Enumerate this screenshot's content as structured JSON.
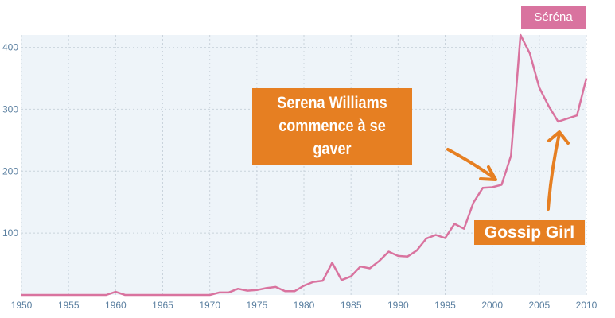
{
  "chart_data": {
    "type": "line",
    "title": "",
    "xlabel": "",
    "ylabel": "",
    "xlim": [
      1950,
      2010
    ],
    "ylim": [
      0,
      420
    ],
    "x_ticks": [
      "1950",
      "1955",
      "1960",
      "1965",
      "1970",
      "1975",
      "1980",
      "1985",
      "1990",
      "1995",
      "2000",
      "2005",
      "2010"
    ],
    "y_ticks": [
      "100",
      "200",
      "300",
      "400"
    ],
    "grid": true,
    "legend": "top-right",
    "series": [
      {
        "name": "Séréna",
        "color": "#d9739f",
        "x": [
          1950,
          1951,
          1952,
          1953,
          1954,
          1955,
          1956,
          1957,
          1958,
          1959,
          1960,
          1961,
          1962,
          1963,
          1964,
          1965,
          1966,
          1967,
          1968,
          1969,
          1970,
          1971,
          1972,
          1973,
          1974,
          1975,
          1976,
          1977,
          1978,
          1979,
          1980,
          1981,
          1982,
          1983,
          1984,
          1985,
          1986,
          1987,
          1988,
          1989,
          1990,
          1991,
          1992,
          1993,
          1994,
          1995,
          1996,
          1997,
          1998,
          1999,
          2000,
          2001,
          2002,
          2003,
          2004,
          2005,
          2006,
          2007,
          2008,
          2009,
          2010
        ],
        "y": [
          0,
          0,
          0,
          0,
          0,
          0,
          0,
          0,
          0,
          0,
          5,
          0,
          0,
          0,
          0,
          0,
          0,
          0,
          0,
          0,
          0,
          4,
          4,
          10,
          7,
          8,
          11,
          13,
          6,
          6,
          15,
          21,
          23,
          52,
          24,
          30,
          46,
          43,
          55,
          70,
          63,
          62,
          72,
          91,
          97,
          92,
          115,
          107,
          149,
          173,
          174,
          178,
          225,
          420,
          390,
          335,
          305,
          280,
          285,
          290,
          350
        ]
      }
    ],
    "annotations": [
      {
        "text": "Serena Williams commence à se gaver",
        "x": 2000,
        "color": "#e67f22"
      },
      {
        "text": "Gossip Girl",
        "x": 2007,
        "color": "#e67f22"
      }
    ]
  }
}
